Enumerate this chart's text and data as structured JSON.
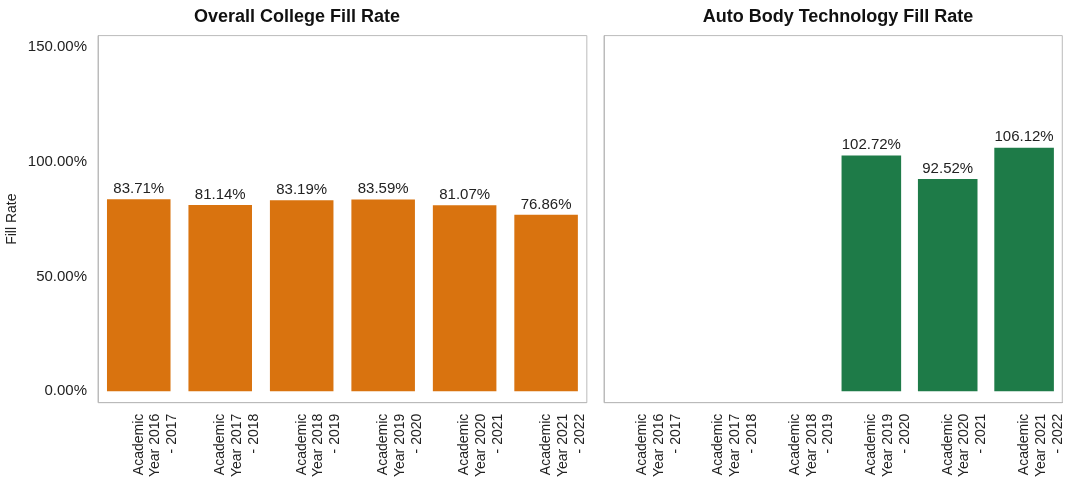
{
  "chart_data": [
    {
      "type": "bar",
      "title": "Overall College Fill Rate",
      "ylabel": "Fill Rate",
      "categories": [
        "Academic Year 2016 - 2017",
        "Academic Year 2017 - 2018",
        "Academic Year 2018 - 2019",
        "Academic Year 2019 - 2020",
        "Academic Year 2020 - 2021",
        "Academic Year 2021 - 2022"
      ],
      "values": [
        83.71,
        81.14,
        83.19,
        83.59,
        81.07,
        76.86
      ],
      "value_labels": [
        "83.71%",
        "81.14%",
        "83.19%",
        "83.59%",
        "81.07%",
        "76.86%"
      ],
      "color": "#d9730f",
      "ylim": [
        -5,
        155
      ],
      "yticks": [
        {
          "value": 0,
          "label": "0.00%"
        },
        {
          "value": 50,
          "label": "50.00%"
        },
        {
          "value": 100,
          "label": "100.00%"
        },
        {
          "value": 150,
          "label": "150.00%"
        }
      ]
    },
    {
      "type": "bar",
      "title": "Auto Body Technology Fill Rate",
      "categories": [
        "Academic Year 2016 - 2017",
        "Academic Year 2017 - 2018",
        "Academic Year 2018 - 2019",
        "Academic Year 2019 - 2020",
        "Academic Year 2020 - 2021",
        "Academic Year 2021 - 2022"
      ],
      "values": [
        null,
        null,
        null,
        102.72,
        92.52,
        106.12
      ],
      "value_labels": [
        null,
        null,
        null,
        "102.72%",
        "92.52%",
        "106.12%"
      ],
      "color": "#1e7b48",
      "ylim": [
        -5,
        155
      ],
      "tick_labels": "x"
    }
  ]
}
